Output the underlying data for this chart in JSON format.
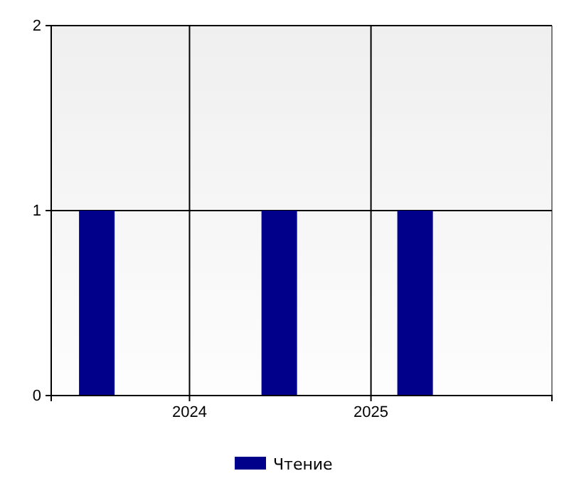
{
  "chart_data": {
    "type": "bar",
    "x": [
      "2023-06-28",
      "2024-06-30",
      "2025-03-31"
    ],
    "series": [
      {
        "name": "Чтение",
        "color": "#00008b",
        "values": [
          1,
          1,
          1
        ]
      }
    ],
    "xlim": [
      "2023-03-28",
      "2026-01-01"
    ],
    "xticks": [
      {
        "value": "2024-01-01",
        "label": "2024"
      },
      {
        "value": "2025-01-01",
        "label": "2025"
      }
    ],
    "ylim": [
      0,
      2
    ],
    "yticks": [
      0,
      1,
      2
    ],
    "grid": true,
    "legend": "bottom"
  }
}
